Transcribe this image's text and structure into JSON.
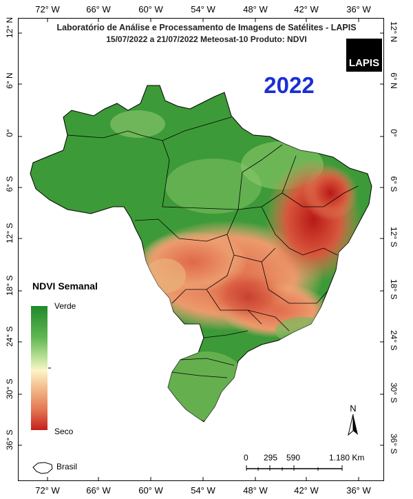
{
  "header": {
    "line1": "Laboratório de Análise e Processamento de Imagens de Satélites - LAPIS",
    "line2": "15/07/2022  a  21/07/2022          Meteosat-10       Produto: NDVI"
  },
  "logo_text": "LAPIS",
  "year": "2022",
  "longitudes": [
    "72° W",
    "66° W",
    "60° W",
    "54° W",
    "48° W",
    "42° W",
    "36° W"
  ],
  "latitudes": [
    "12° N",
    "6° N",
    "0°",
    "6° S",
    "12° S",
    "18° S",
    "24° S",
    "30° S",
    "36° S"
  ],
  "legend": {
    "title": "NDVI Semanal",
    "high_label": "Verde",
    "low_label": "Seco"
  },
  "brasil_label": "Brasil",
  "scale": {
    "labels": [
      "0",
      "295",
      "590",
      "1.180 Km"
    ]
  },
  "north_label": "N",
  "colors": {
    "green": "#2e8b2e",
    "dry": "#c62a1f",
    "year": "#1a2fd6"
  }
}
